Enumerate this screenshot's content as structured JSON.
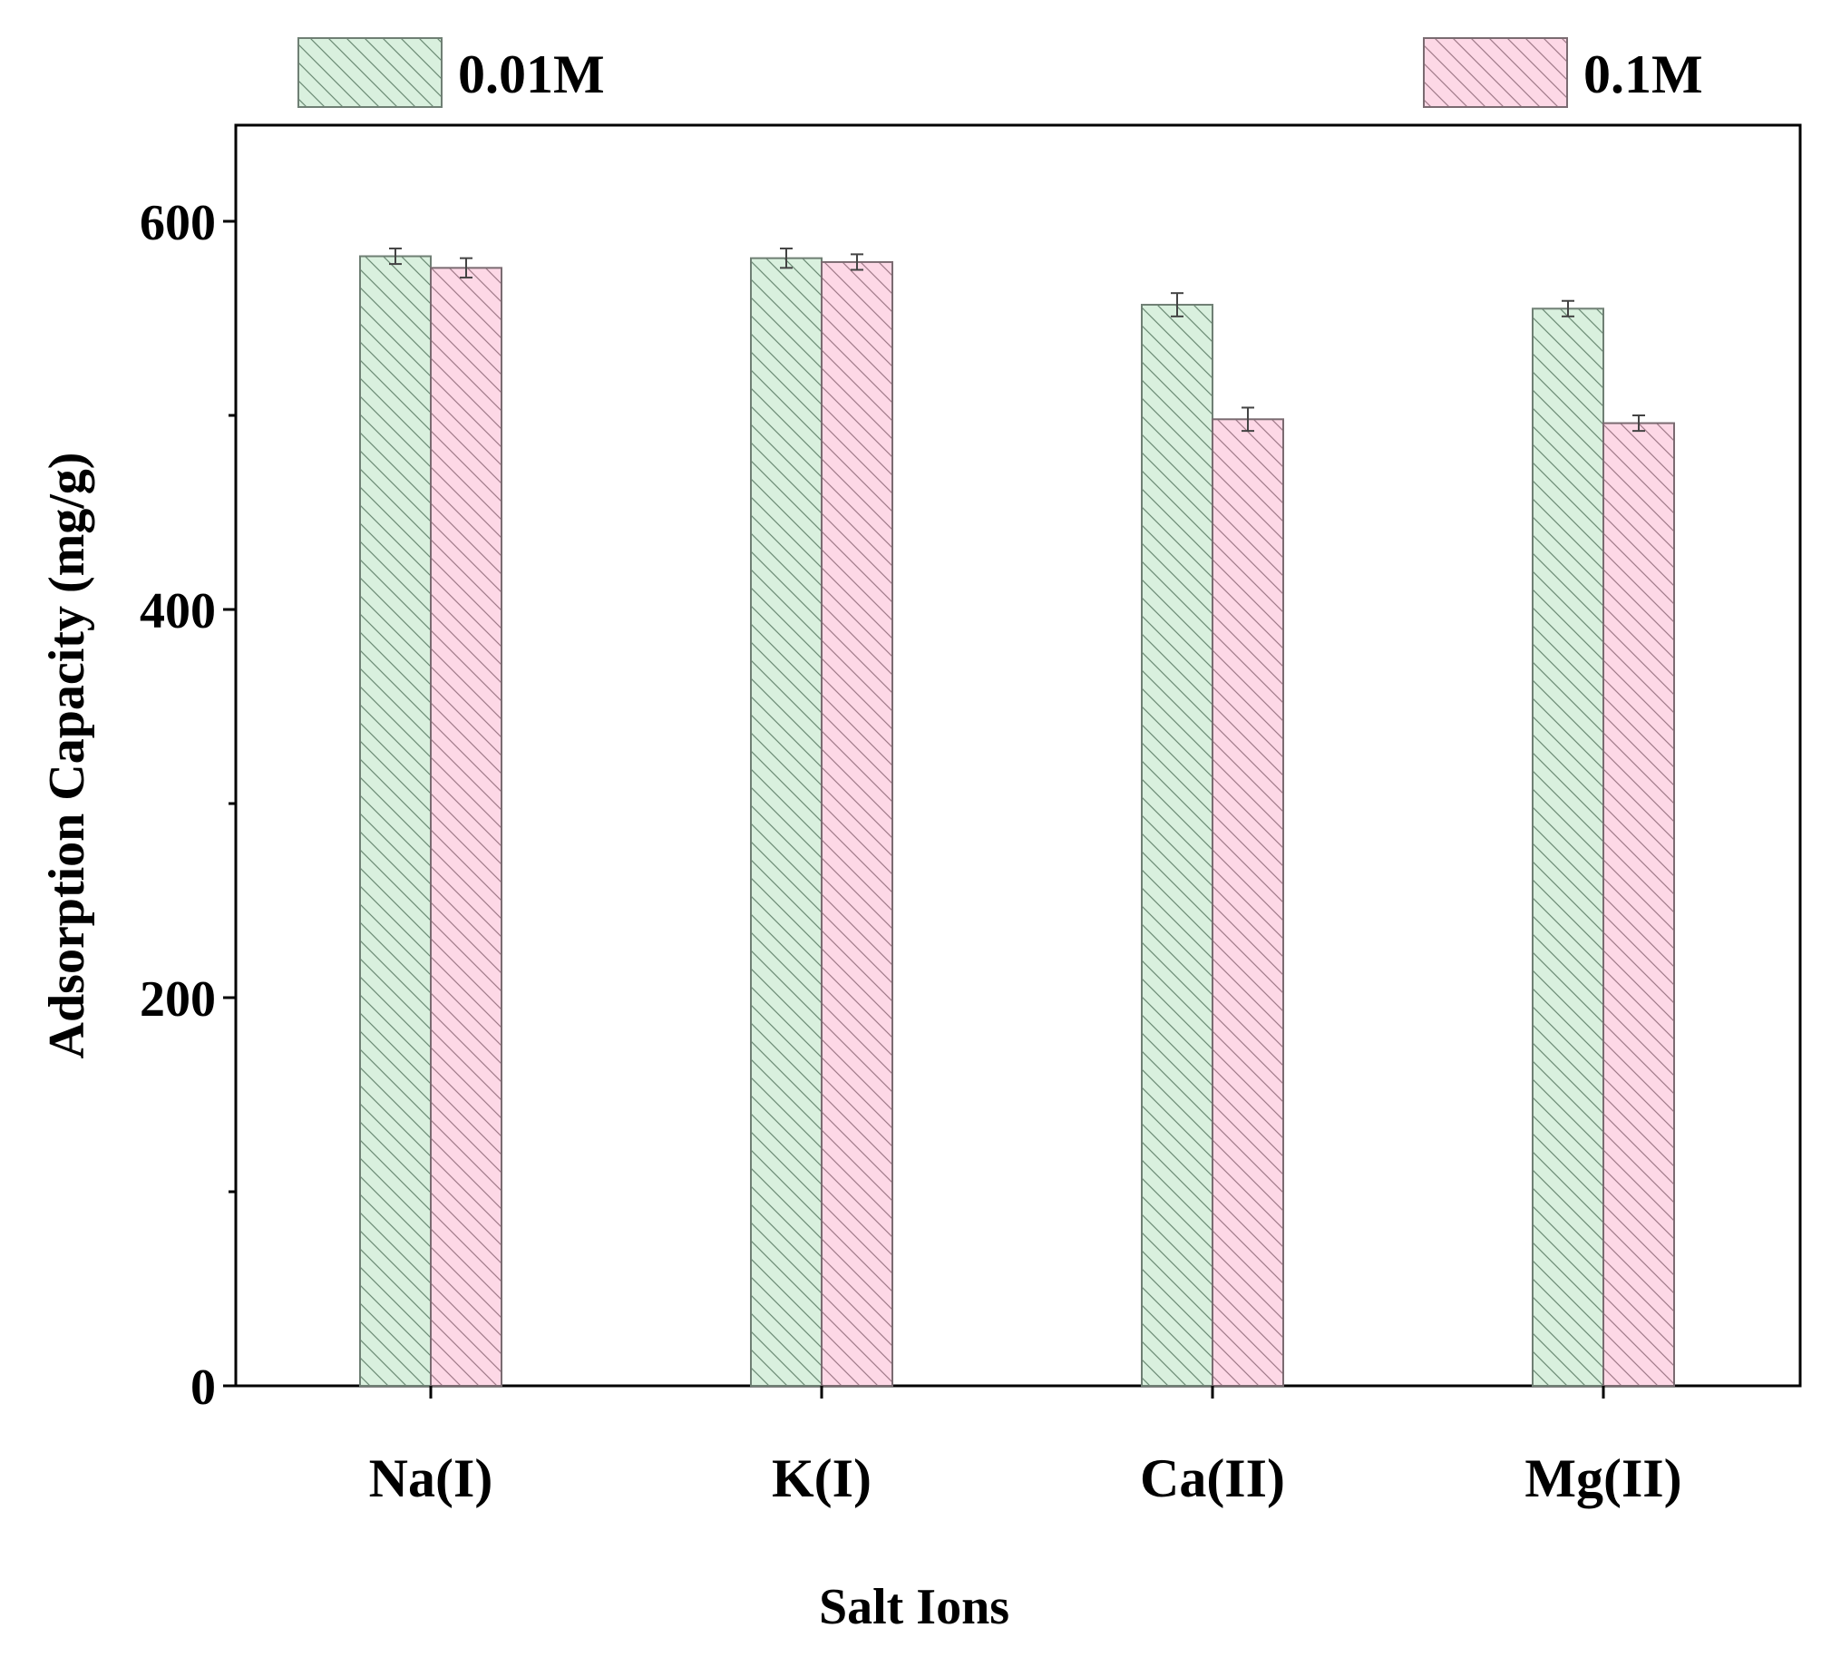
{
  "chart_data": {
    "type": "bar",
    "title": "",
    "xlabel": "Salt Ions",
    "ylabel": "Adsorption Capacity (mg/g)",
    "categories": [
      "Na(I)",
      "K(I)",
      "Ca(II)",
      "Mg(II)"
    ],
    "ylim": [
      0,
      650
    ],
    "yticks": [
      0,
      200,
      400,
      600
    ],
    "yminor_ticks": [
      100,
      300,
      500
    ],
    "grid": false,
    "legend_position": "top",
    "series": [
      {
        "name": "0.01M",
        "values": [
          582,
          581,
          557,
          555
        ],
        "errors": [
          4,
          5,
          6,
          4
        ],
        "fill": "#d9f0de",
        "stroke": "#6f7f74",
        "hatch": "#6b8a74"
      },
      {
        "name": "0.1M",
        "values": [
          576,
          579,
          498,
          496
        ],
        "errors": [
          5,
          4,
          6,
          4
        ],
        "fill": "#fdd8e6",
        "stroke": "#7a6b71",
        "hatch": "#a07a89"
      }
    ]
  }
}
